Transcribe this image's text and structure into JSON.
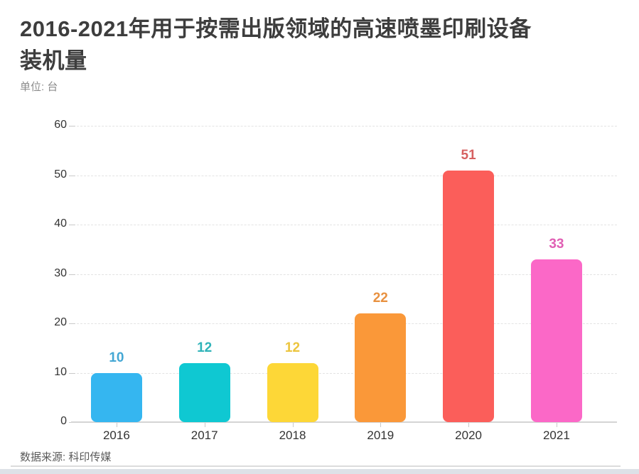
{
  "header": {
    "title_lines": [
      "2016-2021年用于按需出版领域的高速喷墨印刷设备",
      "装机量"
    ],
    "unit_label": "单位: 台"
  },
  "footer": {
    "source_label": "数据来源: 科印传媒"
  },
  "chart_data": {
    "type": "bar",
    "title": "2016-2021年用于按需出版领域的高速喷墨印刷设备装机量",
    "unit": "台",
    "categories": [
      "2016",
      "2017",
      "2018",
      "2019",
      "2020",
      "2021"
    ],
    "values": [
      10,
      12,
      12,
      22,
      51,
      33
    ],
    "bar_colors": [
      "#35b6f0",
      "#0fc8d2",
      "#fdd737",
      "#fa9839",
      "#fb5e5a",
      "#fb68c7"
    ],
    "value_label_colors": [
      "#44a7d4",
      "#2fb3b9",
      "#ecc53e",
      "#e89140",
      "#d66060",
      "#e05fb4"
    ],
    "xlabel": "",
    "ylabel": "",
    "ylim": [
      0,
      60
    ],
    "yticks": [
      0,
      10,
      20,
      30,
      40,
      50,
      60
    ],
    "grid": "horizontal-dashed",
    "legend": "none",
    "data_labels": "above-bars"
  }
}
